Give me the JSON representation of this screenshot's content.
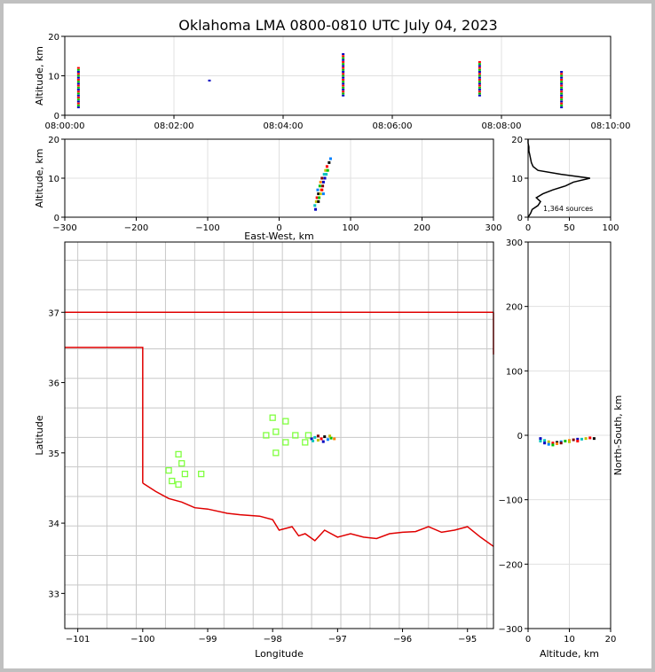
{
  "title": "Oklahoma LMA 0800-0810 UTC July 04, 2023",
  "colors": {
    "state_border": "#e00000",
    "county_border": "#c8c8c8",
    "station": "#80ff40",
    "axis": "#000000",
    "grid": "#e0e0e0"
  },
  "chart_data": [
    {
      "id": "time-height",
      "type": "scatter",
      "ylabel": "Altitude, km",
      "xlabel": "",
      "ylim": [
        0,
        20
      ],
      "yticks": [
        0,
        10,
        20
      ],
      "xlim_minutes": [
        0,
        10
      ],
      "xticks": [
        "08:00:00",
        "08:02:00",
        "08:04:00",
        "08:06:00",
        "08:08:00",
        "08:10:00"
      ],
      "bursts": [
        {
          "time_min": 0.25,
          "z_from": 2,
          "z_to": 12.5
        },
        {
          "time_min": 2.65,
          "z_from": 8.8,
          "z_to": 9.0
        },
        {
          "time_min": 5.1,
          "z_from": 5,
          "z_to": 16
        },
        {
          "time_min": 7.6,
          "z_from": 5,
          "z_to": 14
        },
        {
          "time_min": 9.1,
          "z_from": 2,
          "z_to": 11.5
        }
      ]
    },
    {
      "id": "east-west-height",
      "type": "scatter",
      "xlabel": "East-West, km",
      "ylabel": "Altitude, km",
      "xlim": [
        -300,
        300
      ],
      "xticks": [
        -300,
        -200,
        -100,
        0,
        100,
        200,
        300
      ],
      "ylim": [
        0,
        20
      ],
      "yticks": [
        0,
        10,
        20
      ],
      "points": [
        [
          51,
          2
        ],
        [
          50,
          3
        ],
        [
          52,
          4
        ],
        [
          53,
          5
        ],
        [
          55,
          6
        ],
        [
          54,
          7
        ],
        [
          57,
          8
        ],
        [
          58,
          9
        ],
        [
          60,
          10
        ],
        [
          62,
          9
        ],
        [
          63,
          11
        ],
        [
          65,
          12
        ],
        [
          67,
          13
        ],
        [
          70,
          14
        ],
        [
          72,
          15
        ],
        [
          56,
          5
        ],
        [
          59,
          7
        ],
        [
          61,
          8
        ],
        [
          64,
          10
        ],
        [
          66,
          11
        ],
        [
          58,
          6
        ],
        [
          60,
          7
        ],
        [
          55,
          4
        ],
        [
          62,
          6
        ],
        [
          68,
          12
        ]
      ]
    },
    {
      "id": "altitude-histogram",
      "type": "line",
      "xlim": [
        0,
        100
      ],
      "xticks": [
        0,
        50,
        100
      ],
      "ylim": [
        0,
        20
      ],
      "yticks": [
        0,
        10,
        20
      ],
      "annotation": "1,364 sources",
      "profile": [
        [
          0,
          0
        ],
        [
          3,
          1
        ],
        [
          5,
          2
        ],
        [
          12,
          3
        ],
        [
          15,
          4
        ],
        [
          10,
          5
        ],
        [
          18,
          6
        ],
        [
          30,
          7
        ],
        [
          45,
          8
        ],
        [
          55,
          9
        ],
        [
          75,
          10
        ],
        [
          40,
          11
        ],
        [
          12,
          12
        ],
        [
          6,
          13
        ],
        [
          4,
          14
        ],
        [
          3,
          15
        ],
        [
          2,
          16
        ],
        [
          1,
          17
        ],
        [
          1,
          18
        ],
        [
          0,
          19
        ],
        [
          0,
          20
        ]
      ]
    },
    {
      "id": "plan-view",
      "type": "map",
      "xlabel": "Longitude",
      "ylabel": "Latitude",
      "xlim": [
        -101.2,
        -94.6
      ],
      "xticks": [
        -101,
        -100,
        -99,
        -98,
        -97,
        -96,
        -95
      ],
      "ylim": [
        32.5,
        38.0
      ],
      "yticks": [
        33,
        34,
        35,
        36,
        37
      ],
      "stations": [
        [
          -98.0,
          35.5
        ],
        [
          -97.8,
          35.45
        ],
        [
          -97.95,
          35.3
        ],
        [
          -98.1,
          35.25
        ],
        [
          -97.65,
          35.25
        ],
        [
          -97.45,
          35.25
        ],
        [
          -97.5,
          35.15
        ],
        [
          -97.8,
          35.15
        ],
        [
          -97.95,
          35.0
        ],
        [
          -99.45,
          34.98
        ],
        [
          -99.6,
          34.75
        ],
        [
          -99.4,
          34.85
        ],
        [
          -99.35,
          34.7
        ],
        [
          -99.1,
          34.7
        ],
        [
          -99.55,
          34.6
        ],
        [
          -99.45,
          34.55
        ]
      ],
      "sources": [
        [
          -97.4,
          35.2
        ],
        [
          -97.35,
          35.22
        ],
        [
          -97.3,
          35.18
        ],
        [
          -97.25,
          35.2
        ],
        [
          -97.2,
          35.23
        ],
        [
          -97.15,
          35.19
        ],
        [
          -97.1,
          35.21
        ],
        [
          -97.05,
          35.2
        ],
        [
          -97.3,
          35.24
        ],
        [
          -97.22,
          35.16
        ],
        [
          -97.38,
          35.17
        ],
        [
          -97.12,
          35.24
        ]
      ]
    },
    {
      "id": "north-south-height",
      "type": "scatter",
      "xlabel": "Altitude, km",
      "ylabel": "North-South, km",
      "xlim": [
        0,
        20
      ],
      "xticks": [
        0,
        10,
        20
      ],
      "ylim": [
        -300,
        300
      ],
      "yticks": [
        -300,
        -200,
        -100,
        0,
        100,
        200,
        300
      ],
      "points": [
        [
          3,
          -5
        ],
        [
          4,
          -8
        ],
        [
          5,
          -10
        ],
        [
          6,
          -12
        ],
        [
          7,
          -11
        ],
        [
          8,
          -10
        ],
        [
          9,
          -9
        ],
        [
          10,
          -8
        ],
        [
          11,
          -7
        ],
        [
          12,
          -6
        ],
        [
          13,
          -6
        ],
        [
          14,
          -5
        ],
        [
          15,
          -4
        ],
        [
          16,
          -5
        ],
        [
          5,
          -14
        ],
        [
          6,
          -15
        ],
        [
          7,
          -13
        ],
        [
          8,
          -12
        ],
        [
          4,
          -12
        ],
        [
          3,
          -9
        ],
        [
          10,
          -10
        ],
        [
          12,
          -9
        ]
      ]
    }
  ]
}
